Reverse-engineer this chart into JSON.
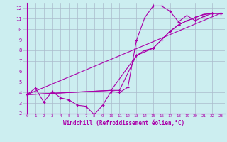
{
  "xlabel": "Windchill (Refroidissement éolien,°C)",
  "bg_color": "#cceef0",
  "grid_color": "#aabbcc",
  "line_color": "#aa00aa",
  "spine_color": "#aa00aa",
  "xlim": [
    -0.5,
    23.5
  ],
  "ylim": [
    2,
    12.5
  ],
  "yticks": [
    2,
    3,
    4,
    5,
    6,
    7,
    8,
    9,
    10,
    11,
    12
  ],
  "xticks": [
    0,
    1,
    2,
    3,
    4,
    5,
    6,
    7,
    8,
    9,
    10,
    11,
    12,
    13,
    14,
    15,
    16,
    17,
    18,
    19,
    20,
    21,
    22,
    23
  ],
  "line1_x": [
    0,
    1,
    2,
    3,
    4,
    5,
    6,
    7,
    8,
    9,
    10,
    11,
    12,
    13,
    14,
    15,
    16,
    17,
    18,
    19,
    20,
    21,
    22,
    23
  ],
  "line1_y": [
    3.8,
    4.4,
    3.1,
    4.1,
    3.5,
    3.3,
    2.8,
    2.7,
    1.9,
    2.8,
    4.1,
    4.0,
    4.5,
    8.9,
    11.1,
    12.2,
    12.2,
    11.7,
    10.7,
    11.3,
    10.8,
    11.2,
    11.5,
    11.5
  ],
  "line2_x": [
    0,
    23
  ],
  "line2_y": [
    3.8,
    11.5
  ],
  "line3_x": [
    0,
    10,
    11,
    13,
    15,
    16,
    17,
    18,
    19,
    20,
    21,
    22,
    23
  ],
  "line3_y": [
    3.8,
    4.2,
    4.2,
    7.5,
    8.2,
    9.0,
    9.8,
    10.4,
    10.8,
    11.1,
    11.4,
    11.5,
    11.5
  ],
  "line4_x": [
    0,
    10,
    13,
    14,
    15,
    16,
    17,
    18,
    19,
    20,
    21,
    22,
    23
  ],
  "line4_y": [
    3.8,
    4.2,
    7.5,
    8.0,
    8.2,
    9.0,
    9.8,
    10.4,
    10.8,
    11.1,
    11.4,
    11.5,
    11.5
  ]
}
